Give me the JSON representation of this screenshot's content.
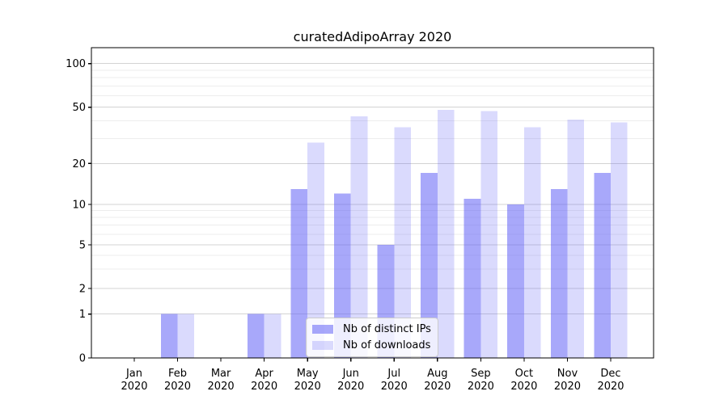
{
  "chart_data": {
    "type": "bar",
    "title": "curatedAdipoArray 2020",
    "categories": [
      "Jan",
      "Feb",
      "Mar",
      "Apr",
      "May",
      "Jun",
      "Jul",
      "Aug",
      "Sep",
      "Oct",
      "Nov",
      "Dec"
    ],
    "x_year": "2020",
    "series": [
      {
        "name": "Nb of distinct IPs",
        "values": [
          0,
          1,
          0,
          1,
          13,
          12,
          5,
          17,
          11,
          10,
          13,
          17
        ],
        "color": "#6666f6",
        "opacity": 0.57
      },
      {
        "name": "Nb of downloads",
        "values": [
          0,
          1,
          0,
          1,
          28,
          43,
          36,
          48,
          47,
          36,
          41,
          39
        ],
        "color": "#6666f6",
        "opacity": 0.24
      }
    ],
    "y_ticks": [
      0,
      1,
      2,
      5,
      10,
      20,
      50,
      100
    ],
    "y_minor_gridlines": [
      3,
      4,
      6,
      7,
      8,
      9,
      30,
      40,
      60,
      70,
      80,
      90
    ],
    "scale": "log above 1, linear 0-1",
    "ylim": [
      0,
      129
    ],
    "grid": true,
    "legend_position": "lower center-left inside plot",
    "colors": {
      "bar_base": "#6666f6",
      "grid_major": "#d3d3d3",
      "grid_minor": "#ededed",
      "spine": "#000000",
      "text": "#000000"
    }
  }
}
